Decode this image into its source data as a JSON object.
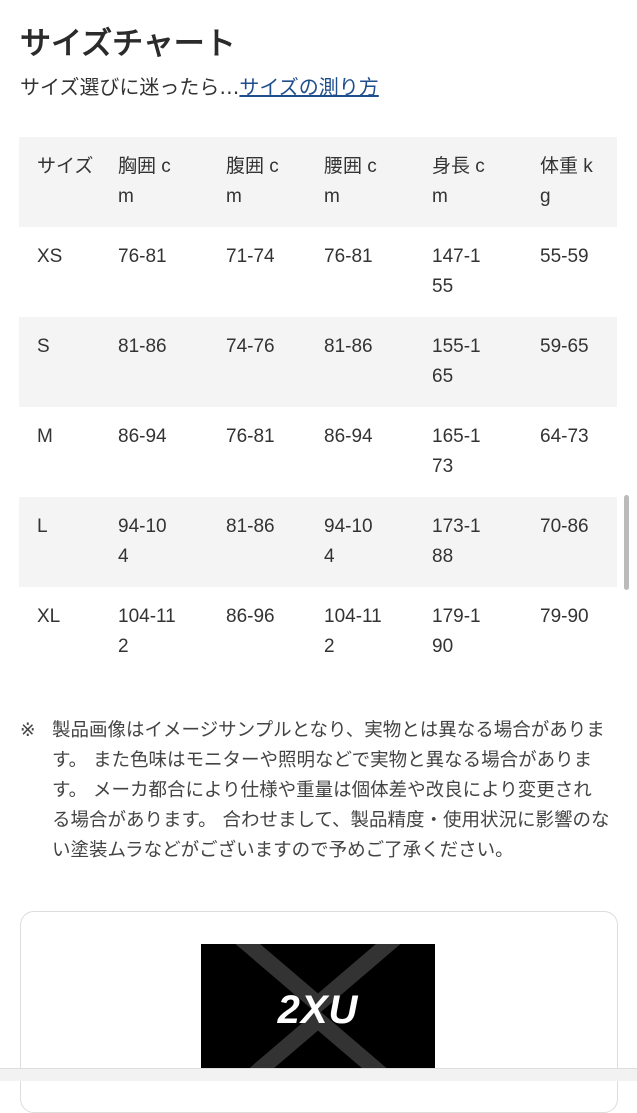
{
  "title": "サイズチャート",
  "subtitle": {
    "text": "サイズ選びに迷ったら…",
    "link": "サイズの測り方"
  },
  "table": {
    "headers": [
      "サイズ",
      "胸囲 cm",
      "腹囲 cm",
      "腰囲 cm",
      "身長 cm",
      "体重 kg"
    ],
    "rows": [
      [
        "XS",
        "76-81",
        "71-74",
        "76-81",
        "147-155",
        "55-59"
      ],
      [
        "S",
        "81-86",
        "74-76",
        "81-86",
        "155-165",
        "59-65"
      ],
      [
        "M",
        "86-94",
        "76-81",
        "86-94",
        "165-173",
        "64-73"
      ],
      [
        "L",
        "94-104",
        "81-86",
        "94-104",
        "173-188",
        "70-86"
      ],
      [
        "XL",
        "104-112",
        "86-96",
        "104-112",
        "179-190",
        "79-90"
      ]
    ]
  },
  "note": {
    "mark": "※",
    "text": "製品画像はイメージサンプルとなり、実物とは異なる場合があります。 また色味はモニターや照明などで実物と異なる場合があります。 メーカ都合により仕様や重量は個体差や改良により変更される場合があります。 合わせまして、製品精度・使用状況に影響のない塗装ムラなどがございますので予めご了承ください。"
  },
  "brand_logo": "2XU",
  "colors": {
    "link": "#1f4e8c",
    "row_alt": "#f4f4f4"
  }
}
